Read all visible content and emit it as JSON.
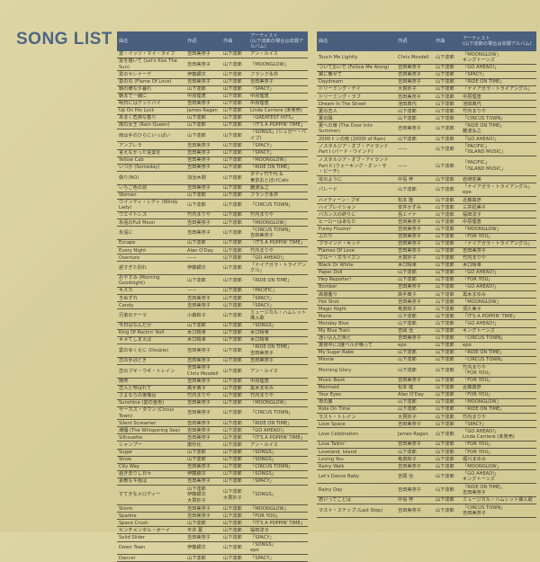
{
  "title": "SONG LIST",
  "header": [
    "曲名",
    "作詞",
    "作曲",
    "アーティスト\n(山下達郎の場合は収録アルバム)"
  ],
  "left_rows": [
    [
      "愛・イッツ・マイ・ライフ",
      "吉田美奈子",
      "山下達郎",
      "アン・ルイス"
    ],
    [
      "愛を描いて (Let's Kiss The Sun)",
      "吉田美奈子",
      "山下達郎",
      "「MOONGLOW」"
    ],
    [
      "愛のセレナーデ",
      "伊藤銀次",
      "山下達郎",
      "フランク永井"
    ],
    [
      "愛の炎 (Flame Of Love)",
      "吉田美奈子",
      "山下達郎",
      "吉田美奈子"
    ],
    [
      "朝の様な夕暮れ",
      "山下達郎",
      "山下達郎",
      "「SPACY」"
    ],
    [
      "朝まで一緒に",
      "中原理恵",
      "山下達郎",
      "中原理恵"
    ],
    [
      "明日にはグッドバイ",
      "吉田美奈子",
      "山下達郎",
      "中原理恵"
    ],
    [
      "Up On His Luck",
      "James Ragan",
      "山下達郎",
      "Linda Carriere (未発売)"
    ],
    [
      "あまく危険な香り",
      "山下達郎",
      "山下達郎",
      "「GREATEST HITS」"
    ],
    [
      "雨の女王 (Rain Queen)",
      "山下達郎",
      "山下達郎",
      "「IT'S A POPPIN' TIME」"
    ],
    [
      "雨は手のひらにいっぱい",
      "山下達郎",
      "山下達郎",
      "「SONGS」(シュガー・ベイブ)"
    ],
    [
      "アンブレラ",
      "吉田美奈子",
      "山下達郎",
      "「SPACY」"
    ],
    [
      "言えなかった言葉を",
      "吉田美奈子",
      "山下達郎",
      "「SPACY」"
    ],
    [
      "Yellow Cab",
      "吉田美奈子",
      "山下達郎",
      "「MOONGLOW」"
    ],
    [
      "いつか (Someday)",
      "吉田美奈子",
      "山下達郎",
      "「RIDE ON TIME」"
    ],
    [
      "偽り(NO)",
      "加治木剛",
      "山下達郎",
      "ダディ竹千代 &\n東京おとぼけCats"
    ],
    [
      "いちご色の窓",
      "吉田美奈子",
      "山下達郎",
      "難波弘之"
    ],
    [
      "Woman",
      "山下達郎",
      "山下達郎",
      "フランク永井"
    ],
    [
      "ウインディ・レディ (Windy Lady)",
      "山下達郎",
      "山下達郎",
      "「CIRCUS TOWN」"
    ],
    [
      "ウエイトレス",
      "竹内まりや",
      "山下達郎",
      "竹内まりや"
    ],
    [
      "永遠のFull Moon",
      "吉田美奈子",
      "山下達郎",
      "「MOONGLOW」"
    ],
    [
      "永遠に",
      "吉田美奈子",
      "山下達郎",
      "「CIRCUS TOWN」\n吉田美奈子"
    ],
    [
      "Escape",
      "山下達郎",
      "山下達郎",
      "「IT'S A POPPIN' TIME」"
    ],
    [
      "Every Night",
      "Alan O'Day",
      "山下達郎",
      "竹内まりや"
    ],
    [
      "Overture",
      "——",
      "山下達郎",
      "「GO AHEAD!」"
    ],
    [
      "遅すぎた別れ",
      "伊藤銀次",
      "山下達郎",
      "「ナイアガラ・トライアングル」"
    ],
    [
      "おやすみ (Morning Goodnight)",
      "山下達郎",
      "山下達郎",
      "「RIDE ON TIME」"
    ],
    [
      "キスカ",
      "——",
      "山下達郎",
      "「PACIFIC」"
    ],
    [
      "きぬずれ",
      "吉田美奈子",
      "山下達郎",
      "「SPACY」"
    ],
    [
      "Candy",
      "吉田美奈子",
      "山下達郎",
      "「SPACY」"
    ],
    [
      "兄弟のテーマ",
      "小森和子",
      "山下達郎",
      "ミュージカル・ハムレット挿入歌"
    ],
    [
      "今日はなんだか",
      "山下達郎",
      "山下達郎",
      "「SONGS」"
    ],
    [
      "King Of Rockin' Roll",
      "木口晴幸",
      "山下達郎",
      "木口晴幸"
    ],
    [
      "キメてしまえば",
      "木口晴幸",
      "山下達郎",
      "木口晴幸"
    ],
    [
      "雲のゆくえに (Double)",
      "吉田美奈子",
      "山下達郎",
      "「RIDE ON TIME」\n吉田美奈子"
    ],
    [
      "恋の手ほどき",
      "吉田美奈子",
      "山下達郎",
      "吉田美奈子"
    ],
    [
      "恋のブギ・ウギ・トレイン",
      "吉田美奈子\nChris Mosdell",
      "山下達郎",
      "アン・ルイス"
    ],
    [
      "微熱",
      "吉田美奈子",
      "山下達郎",
      "中原理恵"
    ],
    [
      "恋人と呼ばれて",
      "高手典子",
      "山下達郎",
      "黒木まゆみ"
    ],
    [
      "さよならの後悔は",
      "竹内まりや",
      "山下達郎",
      "竹内まりや"
    ],
    [
      "Sunshine (愛の金色)",
      "吉田美奈子",
      "山下達郎",
      "「MOONGLOW」"
    ],
    [
      "サーカス・タウン (Circus Town)",
      "吉田美奈子",
      "山下達郎",
      "「CIRCUS TOWN」"
    ],
    [
      "Silent Screamer",
      "吉田美奈子",
      "山下達郎",
      "「RIDE ON TIME」"
    ],
    [
      "潮騒 (The Whispering Sea)",
      "吉田美奈子",
      "山下達郎",
      "「GO AHEAD!」"
    ],
    [
      "Silhouette",
      "吉田美奈子",
      "山下達郎",
      "「IT'S A POPPIN' TIME」"
    ],
    [
      "シャンプー",
      "康珍化",
      "山下達郎",
      "アン・ルイス"
    ],
    [
      "Sugar",
      "山下達郎",
      "山下達郎",
      "「SONGS」"
    ],
    [
      "Show",
      "山下達郎",
      "山下達郎",
      "「SONGS」"
    ],
    [
      "City Way",
      "吉田美奈子",
      "山下達郎",
      "「CIRCUS TOWN」"
    ],
    [
      "過ぎ去りし日々",
      "伊藤銀次",
      "山下達郎",
      "「SONGS」"
    ],
    [
      "素敵な午後は",
      "吉田美奈子",
      "山下達郎",
      "「SPACY」"
    ],
    [
      "すてきなメロディー",
      "山下達郎\n伊藤銀次\n大貫妙子",
      "山下達郎\n大貫妙子",
      "「SONGS」"
    ],
    [
      "Storm",
      "吉田美奈子",
      "山下達郎",
      "「MOONGLOW」"
    ],
    [
      "Sparkle",
      "吉田美奈子",
      "山下達郎",
      "「FOR YOU」"
    ],
    [
      "Space Crush",
      "山下達郎",
      "山下達郎",
      "「IT'S A POPPIN' TIME」"
    ],
    [
      "センチメンタル・ボーイ",
      "平井 夏",
      "山下達郎",
      "桜田淳子"
    ],
    [
      "Solid Slider",
      "吉田美奈子",
      "山下達郎",
      "「SPACY」"
    ],
    [
      "Down Town",
      "伊藤銀次",
      "山下達郎",
      "「SONGS」\nepo"
    ],
    [
      "Dancer",
      "山下達郎",
      "山下達郎",
      "「SPACY」"
    ]
  ],
  "right_rows": [
    [
      "Touch Me Lightly",
      "Chris Mosdell",
      "山下達郎",
      "「MOONGLOW」\nキングトーンズ"
    ],
    [
      "ついておいで (Follow Me Along)",
      "吉田美奈子",
      "山下達郎",
      "「GO AHEAD!」"
    ],
    [
      "翼に乗せて",
      "吉田美奈子",
      "山下達郎",
      "「SPACY」"
    ],
    [
      "Daydream",
      "吉田美奈子",
      "山下達郎",
      "「RIDE ON TIME」"
    ],
    [
      "ドリーミング・デイ",
      "大貫妙子",
      "山下達郎",
      "「ナイアガラ・トライアングル」"
    ],
    [
      "ドリーミング・ラブ",
      "吉田美奈子",
      "山下達郎",
      "中原理恵"
    ],
    [
      "Dream In The Street",
      "池田典代",
      "山下達郎",
      "池田典代"
    ],
    [
      "夏の恋人",
      "山下達郎",
      "山下達郎",
      "竹内まりや"
    ],
    [
      "夏の陽",
      "山下達郎",
      "山下達郎",
      "「CIRCUS TOWN」"
    ],
    [
      "夏への扉 (The Door Into Summer)",
      "吉田美奈子",
      "山下達郎",
      "「RIDE ON TIME」\n難波弘之"
    ],
    [
      "2000トンの雨 (2000t of Rain)",
      "山下達郎",
      "山下達郎",
      "「GO AHEAD!」"
    ],
    [
      "ノスタルジア・オブ・アイランド\nPart I (バード・ウインド)",
      "——",
      "山下達郎",
      "「PACIFIC」\n「ISLAND MUSIC」"
    ],
    [
      "ノスタルジア・オブ・アイランド\nPart II (ウォーキング・オン・ザ\n・ビーチ)",
      "——",
      "山下達郎",
      "「PACIFIC」\n「ISLAND MUSIC」"
    ],
    [
      "花のように",
      "中島 梓",
      "山下達郎",
      "岩崎宏美"
    ],
    [
      "パレード",
      "山下達郎",
      "山下達郎",
      "「ナイアガラ・トライアングル」\nepo"
    ],
    [
      "ハイティーン・ブギ",
      "松本 隆",
      "山下達郎",
      "近藤真彦"
    ],
    [
      "ハイブレイション",
      "安井かずみ",
      "山下達郎",
      "三井紀美子"
    ],
    [
      "バカンスの終りに",
      "島エイナ",
      "山下達郎",
      "桜田淳子"
    ],
    [
      "ヒーローはあなた",
      "吉田美奈子",
      "山下達郎",
      "中原理恵"
    ],
    [
      "Funky Flushin'",
      "吉田美奈子",
      "山下達郎",
      "「MOONGLOW」"
    ],
    [
      "ふたり",
      "吉田美奈子",
      "山下達郎",
      "「FOR YOU」"
    ],
    [
      "ブラインド・キッド",
      "吉田美奈子",
      "山下達郎",
      "「ナイアガラ・トライアングル」"
    ],
    [
      "Flames Of Love",
      "吉田美奈子",
      "山下達郎",
      "吉田美奈子"
    ],
    [
      "ブルー・ホライズン",
      "大貫妙子",
      "山下達郎",
      "竹内まりや"
    ],
    [
      "Black Or White",
      "木口晴幸",
      "山下達郎",
      "木口晴幸"
    ],
    [
      "Paper Doll",
      "山下達郎",
      "山下達郎",
      "「GO AHEAD!」"
    ],
    [
      "Hey Reporter!",
      "山下達郎",
      "山下達郎",
      "「FOR YOU」"
    ],
    [
      "Bomber",
      "吉田美奈子",
      "山下達郎",
      "「GO AHEAD!」"
    ],
    [
      "高層曇り",
      "高手典子",
      "山下達郎",
      "黒木まゆみ"
    ],
    [
      "Hot Shot",
      "吉田美奈子",
      "山下達郎",
      "「MOONGLOW」"
    ],
    [
      "Magic Night",
      "竜真知子",
      "山下達郎",
      "須久美子"
    ],
    [
      "Marie",
      "山下達郎",
      "山下達郎",
      "「IT'S A POPPIN' TIME」"
    ],
    [
      "Monday Blue",
      "山下達郎",
      "山下達郎",
      "「GO AHEAD!」"
    ],
    [
      "My Blue Train",
      "吉岡 治",
      "山下達郎",
      "キングトーンズ"
    ],
    [
      "迷い込んだ街と",
      "吉田美奈子",
      "山下達郎",
      "「CIRCUS TOWN」"
    ],
    [
      "真夜中に2度ベルが鳴って",
      "epo",
      "山下達郎",
      "epo"
    ],
    [
      "My Sugar Babe",
      "山下達郎",
      "山下達郎",
      "「RIDE ON TIME」"
    ],
    [
      "Minnie",
      "山下達郎",
      "山下達郎",
      "「CIRCUS TOWN」"
    ],
    [
      "Morning Glory",
      "山下達郎",
      "山下達郎",
      "竹内まりや\n「FOR YOU」"
    ],
    [
      "Music Book",
      "吉田美奈子",
      "山下達郎",
      "「FOR YOU」"
    ],
    [
      "Mermaid",
      "松本 隆",
      "山下達郎",
      "近藤真彦"
    ],
    [
      "Your Eyes",
      "Alan O'Day",
      "山下達郎",
      "「FOR YOU」"
    ],
    [
      "夜の翼",
      "山下達郎",
      "山下達郎",
      "「MOONGLOW」"
    ],
    [
      "Ride On Time",
      "山下達郎",
      "山下達郎",
      "「RIDE ON TIME」"
    ],
    [
      "ラスト・トレイン",
      "大貫妙子",
      "山下達郎",
      "竹内まりや"
    ],
    [
      "Love Space",
      "吉田美奈子",
      "山下達郎",
      "「SPACY」"
    ],
    [
      "Love Celebration",
      "James Ragan",
      "山下達郎",
      "「GO AHEAD!」\nLinda Carriere (未発売)"
    ],
    [
      "Love Talkin'",
      "吉田美奈子",
      "山下達郎",
      "「FOR YOU」"
    ],
    [
      "Loveland, Island",
      "山下達郎",
      "山下達郎",
      "「FOR YOU」"
    ],
    [
      "Loving You",
      "竜真知子",
      "山下達郎",
      "堀川まゆみ"
    ],
    [
      "Rainy Walk",
      "吉田美奈子",
      "山下達郎",
      "「MOONGLOW」"
    ],
    [
      "Let's Dance Baby",
      "吉岡 治",
      "山下達郎",
      "「GO AHEAD!」\nキングトーンズ"
    ],
    [
      "Rainy Day",
      "吉田美奈子",
      "山下達郎",
      "「RIDE ON TIME」\n吉田美奈子"
    ],
    [
      "若いってことは",
      "中島 梓",
      "山下達郎",
      "ミュージカル・ハムレット挿入歌"
    ],
    [
      "ラスト・ステップ (Last Step)",
      "吉田美奈子",
      "山下達郎",
      "「CIRCUS TOWN」\n吉田美奈子"
    ]
  ],
  "colors": {
    "background": "#d8cf9c",
    "header": "#4a5f7e",
    "title": "#4d6685"
  }
}
